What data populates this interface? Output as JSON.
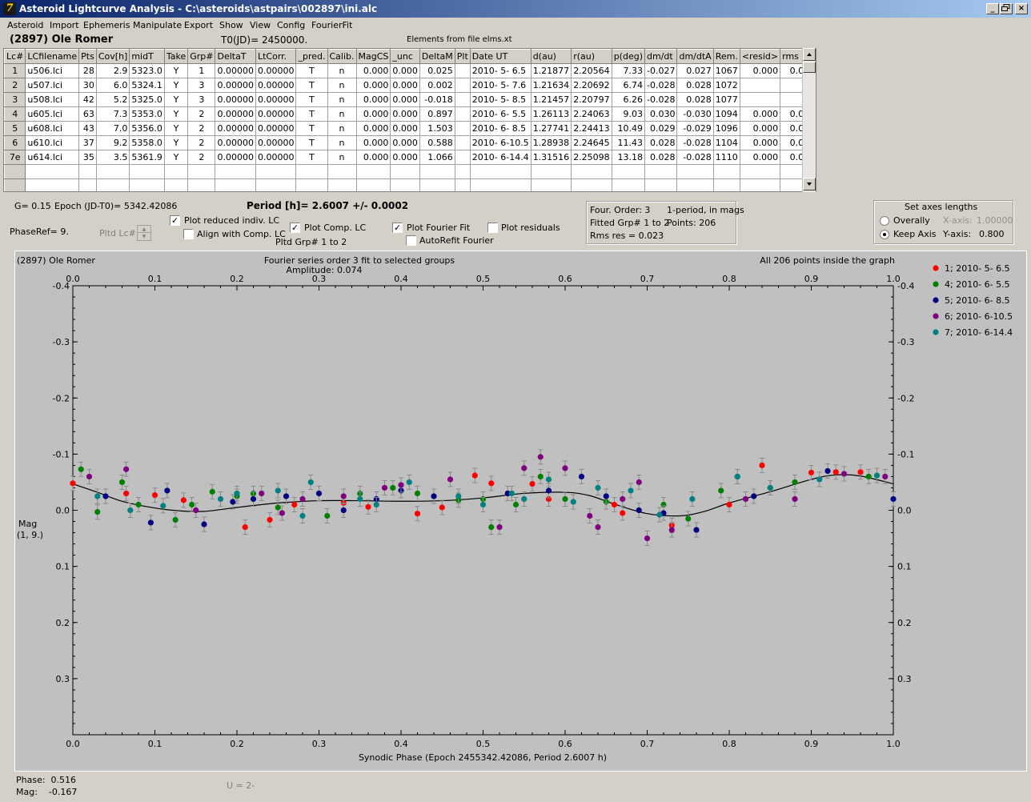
{
  "window": {
    "title": "Asteroid Lightcurve Analysis - C:\\asteroids\\astpairs\\002897\\ini.alc",
    "app_icon": "alc-app-icon",
    "buttons": [
      "_",
      "×"
    ]
  },
  "menu": [
    "Asteroid",
    "Import",
    "Ephemeris",
    "Manipulate",
    "Export",
    "Show",
    "View",
    "Config",
    "FourierFit"
  ],
  "header": {
    "object": "(2897) Ole Romer",
    "t0": "T0(JD)= 2450000.",
    "elements": "Elements from file elms.xt"
  },
  "grid": {
    "columns": [
      "Lc#",
      "LCfilename",
      "Pts",
      "Cov[h]",
      "midT",
      "Take",
      "Grp#",
      "DeltaT",
      "LtCorr.",
      "_pred.",
      "Calib.",
      "MagCS",
      "_unc",
      "DeltaM",
      "Plt",
      "Date UT",
      "d(au)",
      "r(au)",
      "p(deg)",
      "dm/dt",
      "dm/dtA",
      "Rem.",
      "<resid>",
      "rms res"
    ],
    "rows": [
      [
        "1",
        "u506.lci",
        "28",
        "2.9",
        "5323.0",
        "Y",
        "1",
        "0.00000",
        "0.00000",
        "T",
        "n",
        "0.000",
        "0.000",
        "0.025",
        "",
        "2010- 5- 6.5",
        "1.21877",
        "2.20564",
        "7.33",
        "-0.027",
        "0.027",
        "1067",
        "0.000",
        "0.020"
      ],
      [
        "2",
        "u507.lci",
        "30",
        "6.0",
        "5324.1",
        "Y",
        "3",
        "0.00000",
        "0.00000",
        "T",
        "n",
        "0.000",
        "0.000",
        "0.002",
        "",
        "2010- 5- 7.6",
        "1.21634",
        "2.20692",
        "6.74",
        "-0.028",
        "0.028",
        "1072",
        "",
        ""
      ],
      [
        "3",
        "u508.lci",
        "42",
        "5.2",
        "5325.0",
        "Y",
        "3",
        "0.00000",
        "0.00000",
        "T",
        "n",
        "0.000",
        "0.000",
        "-0.018",
        "",
        "2010- 5- 8.5",
        "1.21457",
        "2.20797",
        "6.26",
        "-0.028",
        "0.028",
        "1077",
        "",
        ""
      ],
      [
        "4",
        "u605.lci",
        "63",
        "7.3",
        "5353.0",
        "Y",
        "2",
        "0.00000",
        "0.00000",
        "T",
        "n",
        "0.000",
        "0.000",
        "0.897",
        "",
        "2010- 6- 5.5",
        "1.26113",
        "2.24063",
        "9.03",
        "0.030",
        "-0.030",
        "1094",
        "0.000",
        "0.020"
      ],
      [
        "5",
        "u608.lci",
        "43",
        "7.0",
        "5356.0",
        "Y",
        "2",
        "0.00000",
        "0.00000",
        "T",
        "n",
        "0.000",
        "0.000",
        "1.503",
        "",
        "2010- 6- 8.5",
        "1.27741",
        "2.24413",
        "10.49",
        "0.029",
        "-0.029",
        "1096",
        "0.000",
        "0.021"
      ],
      [
        "6",
        "u610.lci",
        "37",
        "9.2",
        "5358.0",
        "Y",
        "2",
        "0.00000",
        "0.00000",
        "T",
        "n",
        "0.000",
        "0.000",
        "0.588",
        "",
        "2010- 6-10.5",
        "1.28938",
        "2.24645",
        "11.43",
        "0.028",
        "-0.028",
        "1104",
        "0.000",
        "0.032"
      ],
      [
        "7e",
        "u614.lci",
        "35",
        "3.5",
        "5361.9",
        "Y",
        "2",
        "0.00000",
        "0.00000",
        "T",
        "n",
        "0.000",
        "0.000",
        "1.066",
        "",
        "2010- 6-14.4",
        "1.31516",
        "2.25098",
        "13.18",
        "0.028",
        "-0.028",
        "1110",
        "0.000",
        "0.014"
      ]
    ],
    "blank_rows": 2
  },
  "controls": {
    "g": "G= 0.15",
    "epoch": "Epoch (JD-T0)= 5342.42086",
    "period": "Period [h]= 2.6007 +/- 0.0002",
    "phaseref": "PhaseRef= 9.",
    "pltd_lc": "Pltd Lc#:",
    "plot_reduced": "Plot reduced indiv. LC",
    "align": "Align with Comp. LC",
    "plot_comp": "Plot Comp. LC",
    "pltd_grp": "Pltd Grp#  1   to   2",
    "plot_fourier": "Plot Fourier Fit",
    "autorefit": "AutoRefit Fourier",
    "plot_residuals": "Plot residuals",
    "plot_reduced_checked": true,
    "align_checked": false,
    "plot_comp_checked": true,
    "plot_fourier_checked": true,
    "autorefit_checked": false,
    "plot_residuals_checked": false
  },
  "fourier_info": {
    "order": "Four. Order:  3",
    "mode": "1-period, in mags",
    "fitted": "Fitted Grp# 1 to 2",
    "points": "Points: 206",
    "rms": "Rms res     = 0.023"
  },
  "axes_box": {
    "title": "Set axes lengths",
    "overally": "Overally",
    "keep": "Keep Axis",
    "xaxis_label": "X-axis:",
    "xaxis_value": "1.00000",
    "yaxis_label": "Y-axis:",
    "yaxis_value": "0.800",
    "selected": "Keep Axis"
  },
  "plot": {
    "object_label": "(2897) Ole Romer",
    "title_line1": "Fourier series order 3 fit to selected groups",
    "title_line2": "Amplitude: 0.074",
    "inside": "All 206 points inside the graph",
    "ylabel1": "Mag",
    "ylabel2": "(1, 9.)",
    "xlabel": "Synodic Phase (Epoch 2455342.42086, Period 2.6007 h)",
    "background": "#c0c0c0",
    "legend": [
      {
        "label": "1; 2010- 5- 6.5",
        "color": "#ff0000"
      },
      {
        "label": "4; 2010- 6- 5.5",
        "color": "#008000"
      },
      {
        "label": "5; 2010- 6- 8.5",
        "color": "#000080"
      },
      {
        "label": "6; 2010- 6-10.5",
        "color": "#800080"
      },
      {
        "label": "7; 2010- 6-14.4",
        "color": "#008080"
      }
    ]
  },
  "chart_data": {
    "type": "scatter",
    "xlabel": "Synodic Phase (Epoch 2455342.42086, Period 2.6007 h)",
    "ylabel": "Mag (1, 9.)",
    "xlim": [
      0.0,
      1.0
    ],
    "ylim": [
      0.4,
      -0.4
    ],
    "x_ticks": [
      "0.0",
      "0.1",
      "0.2",
      "0.3",
      "0.4",
      "0.5",
      "0.6",
      "0.7",
      "0.8",
      "0.9",
      "1.0"
    ],
    "y_ticks": [
      "-0.4",
      "-0.3",
      "-0.2",
      "-0.1",
      "0.0",
      "0.1",
      "0.2",
      "0.3"
    ],
    "fit_curve": [
      [
        0.0,
        -0.047
      ],
      [
        0.03,
        -0.032
      ],
      [
        0.06,
        -0.016
      ],
      [
        0.1,
        -0.004
      ],
      [
        0.13,
        0.001
      ],
      [
        0.16,
        0.002
      ],
      [
        0.2,
        -0.005
      ],
      [
        0.25,
        -0.013
      ],
      [
        0.3,
        -0.017
      ],
      [
        0.35,
        -0.017
      ],
      [
        0.4,
        -0.016
      ],
      [
        0.45,
        -0.017
      ],
      [
        0.5,
        -0.022
      ],
      [
        0.55,
        -0.03
      ],
      [
        0.6,
        -0.032
      ],
      [
        0.63,
        -0.026
      ],
      [
        0.66,
        -0.011
      ],
      [
        0.7,
        0.006
      ],
      [
        0.74,
        0.01
      ],
      [
        0.77,
        0.002
      ],
      [
        0.8,
        -0.013
      ],
      [
        0.85,
        -0.033
      ],
      [
        0.9,
        -0.055
      ],
      [
        0.93,
        -0.063
      ],
      [
        0.96,
        -0.061
      ],
      [
        1.0,
        -0.047
      ]
    ],
    "series": [
      {
        "name": "1; 2010- 5- 6.5",
        "points": [
          [
            0.0,
            -0.048
          ],
          [
            0.065,
            -0.03
          ],
          [
            0.1,
            -0.027
          ],
          [
            0.135,
            -0.018
          ],
          [
            0.21,
            0.03
          ],
          [
            0.24,
            0.017
          ],
          [
            0.27,
            -0.01
          ],
          [
            0.33,
            -0.013
          ],
          [
            0.36,
            -0.006
          ],
          [
            0.42,
            0.006
          ],
          [
            0.45,
            -0.005
          ],
          [
            0.49,
            -0.062
          ],
          [
            0.51,
            -0.048
          ],
          [
            0.56,
            -0.047
          ],
          [
            0.58,
            -0.02
          ],
          [
            0.66,
            -0.01
          ],
          [
            0.67,
            0.005
          ],
          [
            0.73,
            0.027
          ],
          [
            0.8,
            -0.01
          ],
          [
            0.84,
            -0.08
          ],
          [
            0.9,
            -0.067
          ],
          [
            0.93,
            -0.068
          ],
          [
            0.96,
            -0.068
          ]
        ]
      },
      {
        "name": "4; 2010- 6- 5.5",
        "points": [
          [
            0.01,
            -0.073
          ],
          [
            0.03,
            0.003
          ],
          [
            0.06,
            -0.05
          ],
          [
            0.08,
            -0.01
          ],
          [
            0.125,
            0.017
          ],
          [
            0.145,
            -0.01
          ],
          [
            0.17,
            -0.033
          ],
          [
            0.2,
            -0.025
          ],
          [
            0.22,
            -0.03
          ],
          [
            0.25,
            -0.005
          ],
          [
            0.31,
            0.01
          ],
          [
            0.35,
            -0.03
          ],
          [
            0.39,
            -0.04
          ],
          [
            0.42,
            -0.03
          ],
          [
            0.47,
            -0.018
          ],
          [
            0.5,
            -0.02
          ],
          [
            0.51,
            0.03
          ],
          [
            0.54,
            -0.01
          ],
          [
            0.57,
            -0.06
          ],
          [
            0.6,
            -0.02
          ],
          [
            0.65,
            -0.015
          ],
          [
            0.72,
            -0.01
          ],
          [
            0.75,
            0.015
          ],
          [
            0.79,
            -0.035
          ],
          [
            0.85,
            -0.04
          ],
          [
            0.88,
            -0.05
          ],
          [
            0.97,
            -0.06
          ]
        ]
      },
      {
        "name": "5; 2010- 6- 8.5",
        "points": [
          [
            0.04,
            -0.025
          ],
          [
            0.095,
            0.022
          ],
          [
            0.115,
            -0.035
          ],
          [
            0.16,
            0.025
          ],
          [
            0.195,
            -0.015
          ],
          [
            0.22,
            -0.02
          ],
          [
            0.26,
            -0.025
          ],
          [
            0.3,
            -0.03
          ],
          [
            0.33,
            0.0
          ],
          [
            0.37,
            -0.02
          ],
          [
            0.4,
            -0.035
          ],
          [
            0.44,
            -0.025
          ],
          [
            0.53,
            -0.03
          ],
          [
            0.58,
            -0.035
          ],
          [
            0.62,
            -0.06
          ],
          [
            0.65,
            -0.025
          ],
          [
            0.69,
            0.0
          ],
          [
            0.72,
            0.005
          ],
          [
            0.76,
            0.035
          ],
          [
            0.81,
            -0.06
          ],
          [
            0.83,
            -0.025
          ],
          [
            0.92,
            -0.07
          ],
          [
            1.0,
            -0.02
          ]
        ]
      },
      {
        "name": "6; 2010- 6-10.5",
        "points": [
          [
            0.02,
            -0.06
          ],
          [
            0.065,
            -0.073
          ],
          [
            0.15,
            0.0
          ],
          [
            0.23,
            -0.03
          ],
          [
            0.255,
            0.005
          ],
          [
            0.28,
            -0.02
          ],
          [
            0.33,
            -0.025
          ],
          [
            0.38,
            -0.04
          ],
          [
            0.4,
            -0.045
          ],
          [
            0.46,
            -0.055
          ],
          [
            0.52,
            0.03
          ],
          [
            0.55,
            -0.075
          ],
          [
            0.57,
            -0.095
          ],
          [
            0.6,
            -0.075
          ],
          [
            0.63,
            0.01
          ],
          [
            0.64,
            0.03
          ],
          [
            0.67,
            -0.02
          ],
          [
            0.69,
            -0.05
          ],
          [
            0.7,
            0.05
          ],
          [
            0.73,
            0.035
          ],
          [
            0.82,
            -0.02
          ],
          [
            0.88,
            -0.02
          ],
          [
            0.94,
            -0.065
          ],
          [
            0.99,
            -0.06
          ]
        ]
      },
      {
        "name": "7; 2010- 6-14.4",
        "points": [
          [
            0.03,
            -0.025
          ],
          [
            0.07,
            0.0
          ],
          [
            0.11,
            -0.008
          ],
          [
            0.18,
            -0.02
          ],
          [
            0.2,
            -0.03
          ],
          [
            0.25,
            -0.035
          ],
          [
            0.28,
            0.01
          ],
          [
            0.29,
            -0.05
          ],
          [
            0.35,
            -0.02
          ],
          [
            0.37,
            -0.01
          ],
          [
            0.41,
            -0.05
          ],
          [
            0.47,
            -0.025
          ],
          [
            0.5,
            -0.01
          ],
          [
            0.535,
            -0.03
          ],
          [
            0.55,
            -0.02
          ],
          [
            0.58,
            -0.055
          ],
          [
            0.61,
            -0.015
          ],
          [
            0.64,
            -0.04
          ],
          [
            0.68,
            -0.035
          ],
          [
            0.715,
            0.008
          ],
          [
            0.755,
            -0.02
          ],
          [
            0.81,
            -0.06
          ],
          [
            0.85,
            -0.04
          ],
          [
            0.91,
            -0.055
          ],
          [
            0.98,
            -0.062
          ]
        ]
      }
    ]
  }
}
